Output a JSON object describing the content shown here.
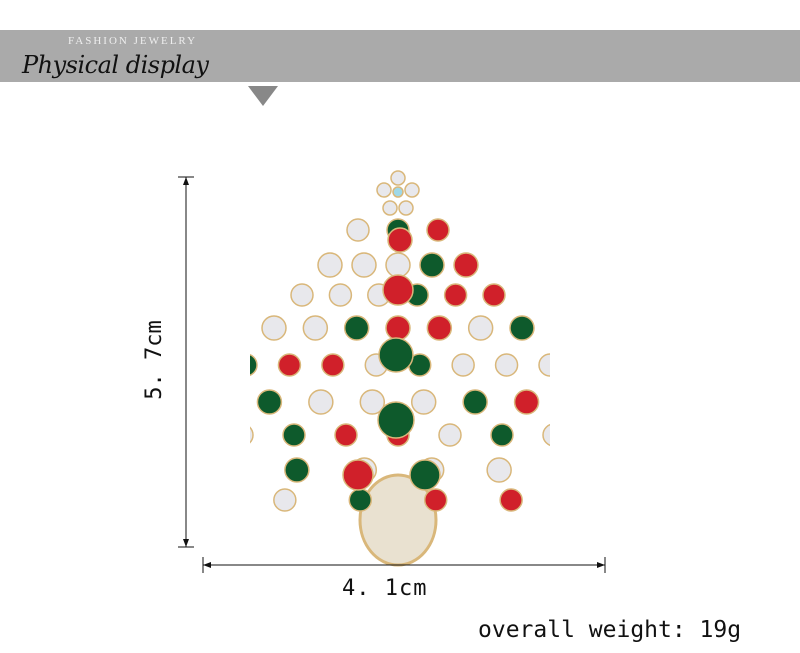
{
  "banner": {
    "subtitle": "FASHION JEWELRY",
    "title": "Physical display"
  },
  "dimensions": {
    "height": "5. 7cm",
    "width": "4. 1cm"
  },
  "weight": "overall weight: 19g",
  "colors": {
    "banner": "#aaaaaa",
    "triangle": "#888888",
    "red": "#d0202a",
    "green": "#0e5a2c",
    "clear": "#e8e8ec",
    "gold": "#d9b77a"
  }
}
